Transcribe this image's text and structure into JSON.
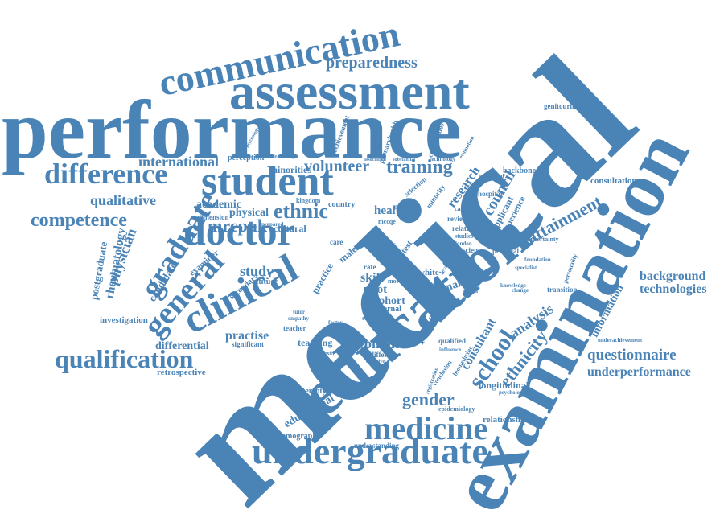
{
  "word_cloud": {
    "color": "#4a83b6",
    "words": {
      "medical": "medical",
      "examination": "examination",
      "education": "education",
      "performance": "performance",
      "assessment": "assessment",
      "communication": "communication",
      "student": "student",
      "doctor": "doctor",
      "clinical": "clinical",
      "undergraduate": "undergraduate",
      "medicine": "medicine",
      "qualification": "qualification",
      "difference": "difference",
      "general": "general",
      "graduate": "graduate",
      "competence": "competence",
      "school": "school",
      "preparedness": "preparedness",
      "ethnic": "ethnic",
      "training": "training",
      "volunteer": "volunteer",
      "international": "international",
      "qualitative": "qualitative",
      "mrcpuk": "mrcpuk",
      "attainment": "attainment",
      "ethnicity": "ethnicity",
      "gender": "gender",
      "questionnaire": "questionnaire",
      "underperformance": "underperformance",
      "background": "background",
      "technologies": "technologies",
      "analysis": "analysis",
      "council": "council",
      "patient": "patient",
      "consultant": "consultant",
      "study": "study",
      "practise": "practise",
      "woman": "woman",
      "differential": "differential",
      "investigation": "investigation",
      "physician": "physician",
      "rheumatology": "rheumatology",
      "postgraduate": "postgraduate",
      "candidate": "candidate",
      "research": "research",
      "educational": "educational",
      "information": "information",
      "health": "health",
      "academic": "academic",
      "physical": "physical",
      "skill": "skill",
      "pilot": "pilot",
      "cohort": "cohort",
      "female": "female",
      "retrospective": "retrospective",
      "relationship": "relationship",
      "longitudinal": "longitudinal",
      "demographic": "demographic",
      "stereotype": "stereotype",
      "understanding": "understanding",
      "consultation": "consultation",
      "genitourinary": "genitourinary",
      "backbone": "backbone",
      "hospital": "hospital",
      "applicant": "applicant",
      "experience": "experience",
      "perception": "perception",
      "minorities": "minorities",
      "achievement": "achievement",
      "continuities": "continuities",
      "primaryhealth": "primaryhealth",
      "teaching": "teaching",
      "method": "method",
      "cultural": "cultural",
      "country": "country",
      "kingdom": "kingdom",
      "examiner": "examiner",
      "dimension": "dimension",
      "significant": "significant",
      "secondary": "secondary",
      "attitude": "attitude",
      "practice": "practice",
      "internal": "internal",
      "white": "white",
      "different": "different",
      "qualified": "qualified",
      "science": "science",
      "personal": "personal",
      "transition": "transition",
      "underachievement": "underachievement",
      "epidemiology": "epidemiology",
      "selection": "selection",
      "minority": "minority",
      "studies": "studies",
      "london": "london",
      "review": "review",
      "relation": "relation",
      "test": "test",
      "fitness": "fitness",
      "male": "male",
      "care": "care",
      "grade": "grade",
      "more": "more",
      "level": "level",
      "uncertainty": "uncertainty",
      "teacher": "teacher",
      "empathy": "empathy",
      "conclusion": "conclusion",
      "registration": "registration",
      "mccqe": "mccqe",
      "prepared": "prepared",
      "outpatient": "outpatient",
      "factor": "factor",
      "rate": "rate",
      "career": "career",
      "foundation": "foundation",
      "specialist": "specialist",
      "psychological": "psychological",
      "biomedicine": "biomedicine",
      "influence": "influence",
      "change": "change",
      "statistic": "statistic",
      "lecture": "lecture",
      "effect": "effect",
      "pass": "pass",
      "age": "age",
      "exam": "exam",
      "knowledge": "knowledge",
      "leadership": "leadership",
      "association": "association",
      "technology": "technology",
      "substantial": "substantial",
      "evaluation": "evaluation",
      "psychology": "psychology",
      "complexity": "complexity",
      "cognitive": "cognitive",
      "tutor": "tutor",
      "personality": "personality"
    }
  }
}
